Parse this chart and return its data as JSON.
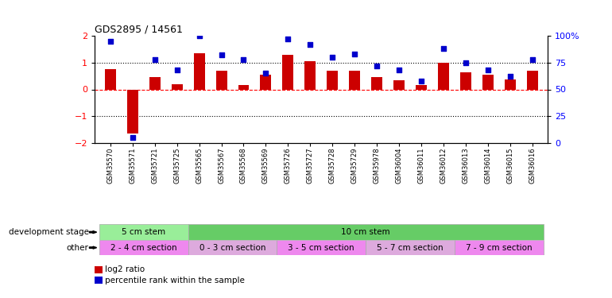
{
  "title": "GDS2895 / 14561",
  "samples": [
    "GSM35570",
    "GSM35571",
    "GSM35721",
    "GSM35725",
    "GSM35565",
    "GSM35567",
    "GSM35568",
    "GSM35569",
    "GSM35726",
    "GSM35727",
    "GSM35728",
    "GSM35729",
    "GSM35978",
    "GSM36004",
    "GSM36011",
    "GSM36012",
    "GSM36013",
    "GSM36014",
    "GSM36015",
    "GSM36016"
  ],
  "log2_ratio": [
    0.75,
    -1.65,
    0.45,
    0.18,
    1.35,
    0.7,
    0.15,
    0.55,
    1.3,
    1.05,
    0.7,
    0.7,
    0.45,
    0.35,
    0.15,
    1.0,
    0.65,
    0.55,
    0.38,
    0.7
  ],
  "percentile": [
    95,
    5,
    78,
    68,
    100,
    82,
    78,
    65,
    97,
    92,
    80,
    83,
    72,
    68,
    58,
    88,
    75,
    68,
    62,
    78
  ],
  "bar_color": "#cc0000",
  "dot_color": "#0000cc",
  "ylim": [
    -2,
    2
  ],
  "y2lim": [
    0,
    100
  ],
  "yticks": [
    -2,
    -1,
    0,
    1,
    2
  ],
  "y2ticks": [
    0,
    25,
    50,
    75,
    100
  ],
  "y2ticklabels": [
    "0",
    "25",
    "50",
    "75",
    "100%"
  ],
  "hlines": [
    -1,
    0,
    1
  ],
  "hline_styles": [
    "dotted",
    "dashed",
    "dotted"
  ],
  "hline_colors": [
    "black",
    "red",
    "black"
  ],
  "dev_stage_groups": [
    {
      "label": "5 cm stem",
      "start": 0,
      "end": 4,
      "color": "#99ee99"
    },
    {
      "label": "10 cm stem",
      "start": 4,
      "end": 20,
      "color": "#66cc66"
    }
  ],
  "other_groups": [
    {
      "label": "2 - 4 cm section",
      "start": 0,
      "end": 4,
      "color": "#ee88ee"
    },
    {
      "label": "0 - 3 cm section",
      "start": 4,
      "end": 8,
      "color": "#ddaadd"
    },
    {
      "label": "3 - 5 cm section",
      "start": 8,
      "end": 12,
      "color": "#ee88ee"
    },
    {
      "label": "5 - 7 cm section",
      "start": 12,
      "end": 16,
      "color": "#ddaadd"
    },
    {
      "label": "7 - 9 cm section",
      "start": 16,
      "end": 20,
      "color": "#ee88ee"
    }
  ],
  "legend_items": [
    {
      "label": "log2 ratio",
      "color": "#cc0000"
    },
    {
      "label": "percentile rank within the sample",
      "color": "#0000cc"
    }
  ],
  "label_dev_stage": "development stage",
  "label_other": "other",
  "bar_width": 0.5
}
